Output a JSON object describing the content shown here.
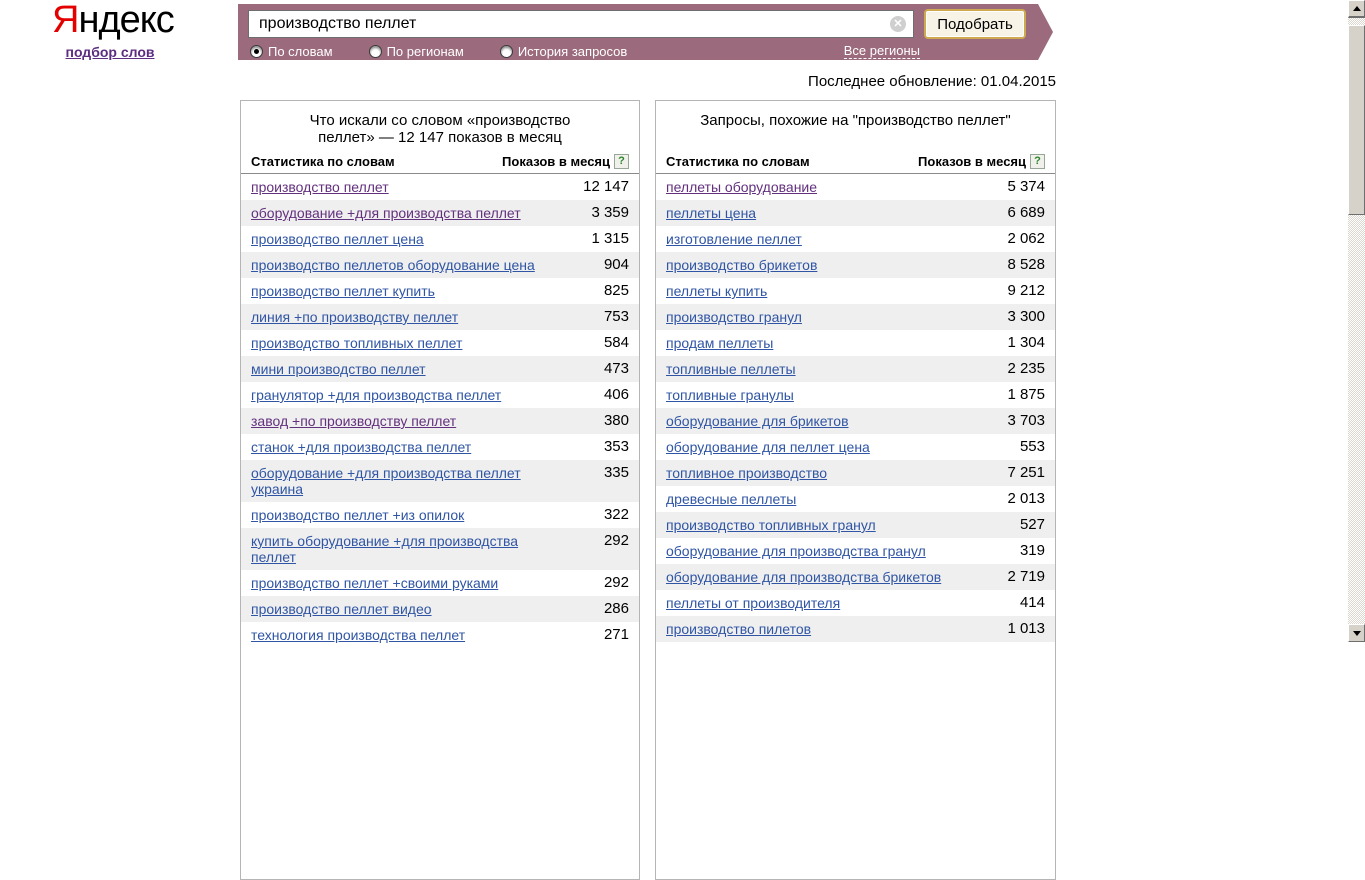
{
  "logo": {
    "accent_letter": "Я",
    "rest": "ндекс",
    "service_link": "подбор слов"
  },
  "search": {
    "query": "производство пеллет",
    "submit_label": "Подобрать"
  },
  "tabs": [
    {
      "label": "По словам",
      "selected": true
    },
    {
      "label": "По регионам",
      "selected": false
    },
    {
      "label": "История запросов",
      "selected": false
    }
  ],
  "all_regions": "Все регионы",
  "last_update": "Последнее обновление: 01.04.2015",
  "table_header": {
    "keyword_col": "Статистика по словам",
    "impressions_col": "Показов в месяц",
    "help_glyph": "?"
  },
  "left_panel": {
    "title": "Что искали со словом «производство пеллет» — 12 147 показов в месяц",
    "rows": [
      {
        "keyword": "производство пеллет",
        "value": "12 147",
        "visited": true
      },
      {
        "keyword": "оборудование +для производства пеллет",
        "value": "3 359",
        "visited": true
      },
      {
        "keyword": "производство пеллет цена",
        "value": "1 315",
        "visited": false
      },
      {
        "keyword": "производство пеллетов оборудование цена",
        "value": "904",
        "visited": false
      },
      {
        "keyword": "производство пеллет купить",
        "value": "825",
        "visited": false
      },
      {
        "keyword": "линия +по производству пеллет",
        "value": "753",
        "visited": false
      },
      {
        "keyword": "производство топливных пеллет",
        "value": "584",
        "visited": false
      },
      {
        "keyword": "мини производство пеллет",
        "value": "473",
        "visited": false
      },
      {
        "keyword": "гранулятор +для производства пеллет",
        "value": "406",
        "visited": false
      },
      {
        "keyword": "завод +по производству пеллет",
        "value": "380",
        "visited": true
      },
      {
        "keyword": "станок +для производства пеллет",
        "value": "353",
        "visited": false
      },
      {
        "keyword": "оборудование +для производства пеллет украина",
        "value": "335",
        "visited": false
      },
      {
        "keyword": "производство пеллет +из опилок",
        "value": "322",
        "visited": false
      },
      {
        "keyword": "купить оборудование +для производства пеллет",
        "value": "292",
        "visited": false
      },
      {
        "keyword": "производство пеллет +своими руками",
        "value": "292",
        "visited": false
      },
      {
        "keyword": "производство пеллет видео",
        "value": "286",
        "visited": false
      },
      {
        "keyword": "технология производства пеллет",
        "value": "271",
        "visited": false
      }
    ]
  },
  "right_panel": {
    "title": "Запросы, похожие на \"производство пеллет\"",
    "rows": [
      {
        "keyword": "пеллеты оборудование",
        "value": "5 374",
        "visited": true
      },
      {
        "keyword": "пеллеты цена",
        "value": "6 689",
        "visited": false
      },
      {
        "keyword": "изготовление пеллет",
        "value": "2 062",
        "visited": false
      },
      {
        "keyword": "производство брикетов",
        "value": "8 528",
        "visited": false
      },
      {
        "keyword": "пеллеты купить",
        "value": "9 212",
        "visited": false
      },
      {
        "keyword": "производство гранул",
        "value": "3 300",
        "visited": false
      },
      {
        "keyword": "продам пеллеты",
        "value": "1 304",
        "visited": false
      },
      {
        "keyword": "топливные пеллеты",
        "value": "2 235",
        "visited": false
      },
      {
        "keyword": "топливные гранулы",
        "value": "1 875",
        "visited": false
      },
      {
        "keyword": "оборудование для брикетов",
        "value": "3 703",
        "visited": false
      },
      {
        "keyword": "оборудование для пеллет цена",
        "value": "553",
        "visited": false
      },
      {
        "keyword": "топливное производство",
        "value": "7 251",
        "visited": false
      },
      {
        "keyword": "древесные пеллеты",
        "value": "2 013",
        "visited": false
      },
      {
        "keyword": "производство топливных гранул",
        "value": "527",
        "visited": false
      },
      {
        "keyword": "оборудование для производства гранул",
        "value": "319",
        "visited": false
      },
      {
        "keyword": "оборудование для производства брикетов",
        "value": "2 719",
        "visited": false
      },
      {
        "keyword": "пеллеты от производителя",
        "value": "414",
        "visited": false
      },
      {
        "keyword": "производство пилетов",
        "value": "1 013",
        "visited": false
      }
    ]
  },
  "colors": {
    "bar_background": "#9b6a7c",
    "link": "#2f55a4",
    "visited_link": "#63307e",
    "row_alternate": "#efefef",
    "logo_red": "#e30000",
    "button_border": "#cfa94f"
  }
}
